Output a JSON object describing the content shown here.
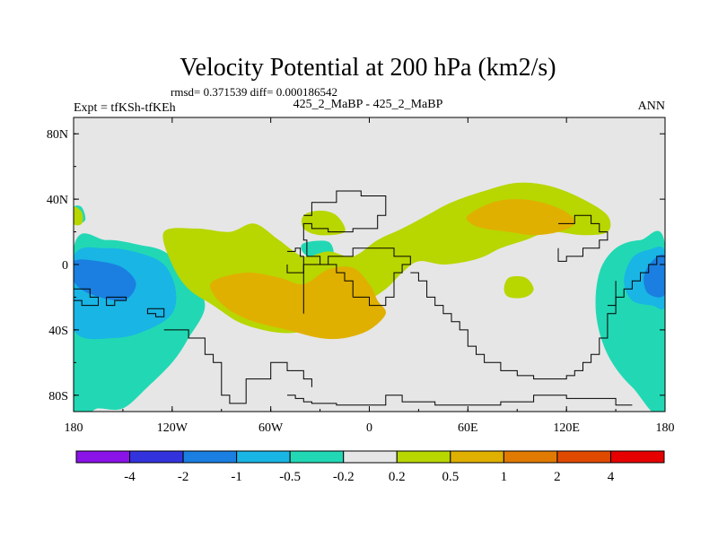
{
  "chart_data": {
    "type": "heatmap",
    "title": "Velocity Potential at 200 hPa (km2/s)",
    "stats_text": "rmsd= 0.371539 diff= 0.000186542",
    "left_label": "Expt = tfKSh-tfKEh",
    "center_label": "425_2_MaBP - 425_2_MaBP",
    "right_label": "ANN",
    "x_ticks": [
      "180",
      "120W",
      "60W",
      "0",
      "60E",
      "120E",
      "180"
    ],
    "x_tick_values": [
      -180,
      -120,
      -60,
      0,
      60,
      120,
      180
    ],
    "y_ticks": [
      "80N",
      "40N",
      "0",
      "40S",
      "80S"
    ],
    "y_tick_values": [
      80,
      40,
      0,
      -40,
      -80
    ],
    "xlim": [
      -180,
      180
    ],
    "ylim": [
      -90,
      90
    ],
    "colorbar": {
      "labels": [
        "-4",
        "-2",
        "-1",
        "-0.5",
        "-0.2",
        "0.2",
        "0.5",
        "1",
        "2",
        "4"
      ],
      "colors": [
        "#8a13e8",
        "#3333dd",
        "#1a7fe0",
        "#19b5e5",
        "#22d8b4",
        "#e6e6e6",
        "#b8d600",
        "#e0b000",
        "#e07a00",
        "#e04a00",
        "#e60000"
      ]
    },
    "regions": [
      {
        "name": "negative-pacific-east",
        "level": "-0.2",
        "color": "#22d8b4",
        "lon": [
          -180,
          -160,
          -140,
          -125,
          -110,
          -100,
          -110,
          -120,
          -135,
          -150,
          -165,
          -180
        ],
        "lat": [
          10,
          15,
          12,
          8,
          -5,
          -25,
          -45,
          -60,
          -75,
          -88,
          -88,
          -88
        ]
      },
      {
        "name": "negative-pacific-east-inner",
        "level": "-0.5",
        "color": "#19b5e5",
        "lon": [
          -180,
          -160,
          -140,
          -125,
          -118,
          -120,
          -135,
          -155,
          -180
        ],
        "lat": [
          5,
          10,
          7,
          0,
          -15,
          -30,
          -40,
          -45,
          -40
        ]
      },
      {
        "name": "negative-pacific-east-core",
        "level": "-1",
        "color": "#1a7fe0",
        "lon": [
          -180,
          -165,
          -150,
          -142,
          -150,
          -170,
          -180
        ],
        "lat": [
          2,
          2,
          -2,
          -12,
          -22,
          -18,
          -10
        ]
      },
      {
        "name": "negative-pacific-west",
        "level": "-0.2",
        "color": "#22d8b4",
        "lon": [
          180,
          165,
          150,
          140,
          138,
          145,
          160,
          180
        ],
        "lat": [
          12,
          15,
          10,
          -5,
          -30,
          -55,
          -75,
          -88
        ]
      },
      {
        "name": "negative-pacific-west-inner",
        "level": "-0.5",
        "color": "#19b5e5",
        "lon": [
          180,
          170,
          160,
          155,
          160,
          172,
          180
        ],
        "lat": [
          8,
          9,
          4,
          -10,
          -22,
          -25,
          -25
        ]
      },
      {
        "name": "negative-pacific-west-core",
        "level": "-1",
        "color": "#1a7fe0",
        "lon": [
          180,
          172,
          167,
          170,
          180
        ],
        "lat": [
          5,
          2,
          -8,
          -18,
          -18
        ]
      },
      {
        "name": "negative-small-atlantic",
        "level": "-0.2",
        "color": "#22d8b4",
        "lon": [
          -40,
          -25,
          -22,
          -30,
          -40
        ],
        "lat": [
          13,
          14,
          5,
          2,
          7
        ]
      },
      {
        "name": "negative-small-west",
        "level": "-0.2",
        "color": "#22d8b4",
        "lon": [
          -175,
          -180,
          -180,
          -173
        ],
        "lat": [
          35,
          35,
          25,
          27
        ]
      },
      {
        "name": "positive-main",
        "level": "0.2",
        "color": "#b8d600",
        "lon": [
          -125,
          -105,
          -85,
          -70,
          -55,
          -40,
          -25,
          -10,
          5,
          20,
          35,
          50,
          70,
          90,
          110,
          130,
          145,
          145,
          130,
          110,
          95,
          80,
          70,
          60,
          45,
          30,
          20,
          10,
          -5,
          -20,
          -35,
          -50,
          -65,
          -80,
          -95,
          -110,
          -120
        ],
        "lat": [
          20,
          22,
          20,
          25,
          15,
          5,
          8,
          5,
          15,
          22,
          30,
          38,
          45,
          50,
          48,
          40,
          30,
          20,
          18,
          20,
          15,
          10,
          5,
          2,
          0,
          2,
          -5,
          -15,
          -25,
          -35,
          -40,
          -42,
          -40,
          -35,
          -25,
          -15,
          0
        ]
      },
      {
        "name": "positive-atlantic",
        "level": "0.2",
        "color": "#b8d600",
        "lon": [
          -40,
          -30,
          -20,
          -15,
          -30,
          -40
        ],
        "lat": [
          30,
          33,
          30,
          20,
          18,
          22
        ]
      },
      {
        "name": "positive-small-se",
        "level": "0.2",
        "color": "#b8d600",
        "lon": [
          85,
          95,
          100,
          95,
          85,
          82
        ],
        "lat": [
          -8,
          -8,
          -15,
          -20,
          -20,
          -15
        ]
      },
      {
        "name": "positive-small-far-west",
        "level": "0.2",
        "color": "#b8d600",
        "lon": [
          -180,
          -175,
          -175,
          -180
        ],
        "lat": [
          35,
          32,
          25,
          25
        ]
      },
      {
        "name": "positive-africa-core",
        "level": "0.5",
        "color": "#e0b000",
        "lon": [
          -95,
          -75,
          -55,
          -40,
          -25,
          -10,
          0,
          5,
          10,
          0,
          -15,
          -30,
          -50,
          -70,
          -85,
          -95
        ],
        "lat": [
          -10,
          -5,
          -8,
          -12,
          -3,
          -2,
          -12,
          -22,
          -30,
          -40,
          -45,
          -45,
          -40,
          -35,
          -28,
          -18
        ]
      },
      {
        "name": "positive-asia-core",
        "level": "0.5",
        "color": "#e0b000",
        "lon": [
          60,
          75,
          90,
          105,
          120,
          125,
          115,
          100,
          85,
          70,
          62
        ],
        "lat": [
          30,
          38,
          40,
          38,
          32,
          25,
          20,
          18,
          20,
          22,
          25
        ]
      }
    ],
    "coast_lines": [
      {
        "lon": [
          -160,
          -160,
          -155,
          -155,
          -148,
          -148,
          -160
        ],
        "lat": [
          -20,
          -25,
          -25,
          -22,
          -22,
          -20,
          -20
        ]
      },
      {
        "lon": [
          -135,
          -135,
          -130,
          -130,
          -125,
          -125,
          -135
        ],
        "lat": [
          -27,
          -30,
          -30,
          -32,
          -32,
          -27,
          -27
        ]
      },
      {
        "lon": [
          -125,
          -110,
          -100,
          -95,
          -90,
          -90,
          -85,
          -80,
          -75,
          -60,
          -50,
          -40,
          -35
        ],
        "lat": [
          -40,
          -45,
          -55,
          -60,
          -70,
          -80,
          -85,
          -85,
          -70,
          -60,
          -65,
          -70,
          -75
        ]
      },
      {
        "lon": [
          -50,
          -45,
          -40,
          -35,
          -20,
          0,
          10,
          20,
          40,
          60,
          80,
          100,
          120,
          150,
          160
        ],
        "lat": [
          -80,
          -82,
          -84,
          -85,
          -86,
          -86,
          -80,
          -84,
          -86,
          -86,
          -84,
          -80,
          -82,
          -86,
          -86
        ]
      },
      {
        "lon": [
          -40,
          -35,
          -20,
          -20,
          -10,
          -5,
          0,
          10,
          10,
          5,
          -10,
          -25,
          -35,
          -40,
          -38,
          -30,
          -20,
          -15,
          -10
        ],
        "lat": [
          30,
          38,
          38,
          45,
          45,
          42,
          42,
          40,
          30,
          22,
          20,
          22,
          25,
          15,
          5,
          0,
          -5,
          -10,
          -20
        ]
      },
      {
        "lon": [
          -10,
          0,
          10,
          15,
          20,
          25,
          15,
          5,
          -10,
          -25,
          -40,
          -40
        ],
        "lat": [
          -20,
          -25,
          -20,
          -5,
          0,
          5,
          10,
          10,
          5,
          0,
          -15,
          -30
        ]
      },
      {
        "lon": [
          25,
          30,
          35,
          40,
          45,
          50,
          55,
          60,
          65,
          70,
          80,
          90,
          100,
          110,
          120,
          125,
          130,
          135,
          140,
          145,
          145,
          150
        ],
        "lat": [
          -5,
          -10,
          -20,
          -25,
          -30,
          -35,
          -40,
          -50,
          -55,
          -60,
          -65,
          -68,
          -70,
          -70,
          -68,
          -65,
          -60,
          -55,
          -45,
          -40,
          -30,
          -10
        ]
      },
      {
        "lon": [
          115,
          125,
          130,
          135,
          140,
          145,
          140,
          130,
          120,
          115
        ],
        "lat": [
          25,
          30,
          30,
          25,
          20,
          15,
          10,
          5,
          2,
          10
        ]
      },
      {
        "lon": [
          145,
          150,
          155,
          160,
          165,
          170,
          175,
          180
        ],
        "lat": [
          -25,
          -20,
          -15,
          -10,
          -5,
          0,
          5,
          10
        ]
      },
      {
        "lon": [
          -180,
          -175,
          -170,
          -165,
          -165,
          -170,
          -175,
          -180
        ],
        "lat": [
          -15,
          -15,
          -20,
          -22,
          -25,
          -25,
          -22,
          -20
        ]
      },
      {
        "lon": [
          -50,
          -45,
          -42,
          -40,
          -45,
          -50
        ],
        "lat": [
          8,
          10,
          5,
          -5,
          -5,
          0
        ]
      }
    ]
  }
}
